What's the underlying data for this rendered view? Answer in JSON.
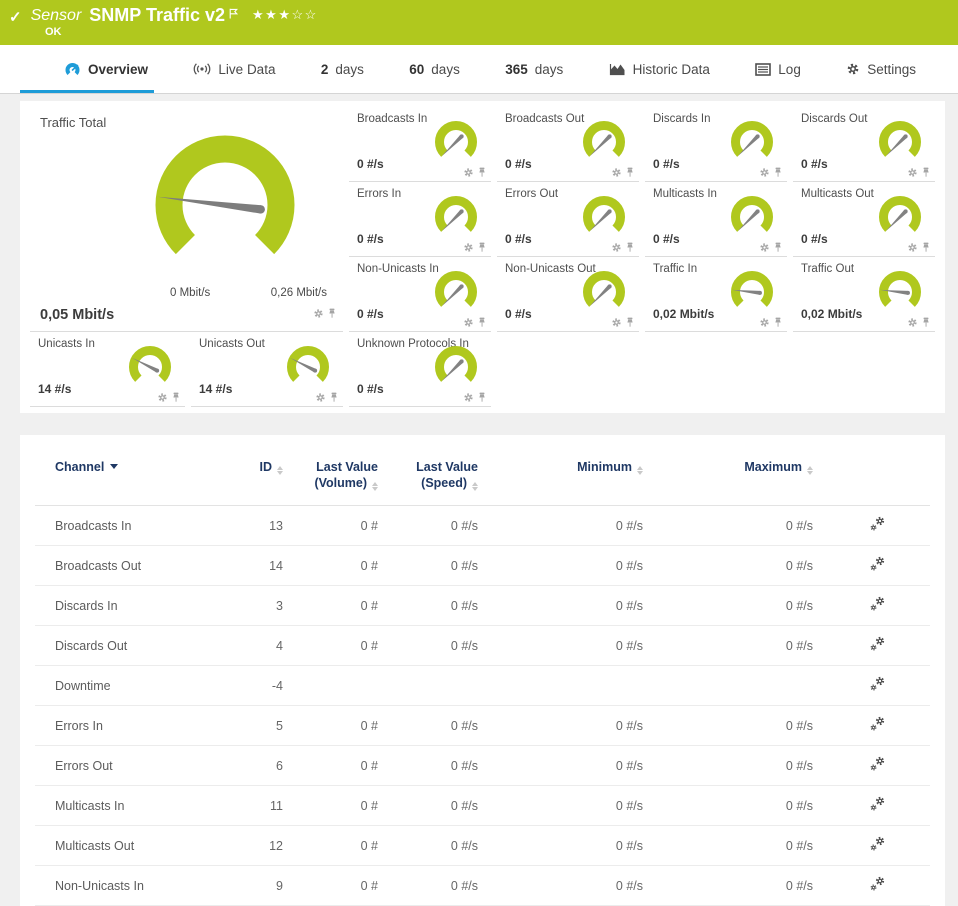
{
  "colors": {
    "accent_green": "#b0c81e",
    "tab_blue": "#1e9cd8",
    "header_navy": "#1f3864",
    "needle_gray": "#7d7d7d"
  },
  "topbar": {
    "kind": "Sensor",
    "title": "SNMP Traffic v2",
    "status": "OK",
    "stars": "★★★☆☆",
    "check": "✓"
  },
  "tabs": [
    {
      "slug": "overview",
      "label": "Overview",
      "icon": "gauge",
      "active": true
    },
    {
      "slug": "live-data",
      "label": "Live Data",
      "icon": "live"
    },
    {
      "slug": "2-days",
      "number": "2",
      "label": "days"
    },
    {
      "slug": "60-days",
      "number": "60",
      "label": "days"
    },
    {
      "slug": "365-days",
      "number": "365",
      "label": "days"
    },
    {
      "slug": "historic-data",
      "label": "Historic Data",
      "icon": "historic"
    },
    {
      "slug": "log",
      "label": "Log",
      "icon": "log"
    },
    {
      "slug": "settings",
      "label": "Settings",
      "icon": "gear"
    }
  ],
  "gauges": {
    "big": {
      "label": "Traffic Total",
      "value": "0,05 Mbit/s",
      "scale_min": "0 Mbit/s",
      "scale_max": "0,26 Mbit/s",
      "needle_deg": 187
    },
    "small": [
      {
        "label": "Broadcasts In",
        "value": "0 #/s",
        "needle_deg": 135
      },
      {
        "label": "Broadcasts Out",
        "value": "0 #/s",
        "needle_deg": 135
      },
      {
        "label": "Discards In",
        "value": "0 #/s",
        "needle_deg": 135
      },
      {
        "label": "Discards Out",
        "value": "0 #/s",
        "needle_deg": 135
      },
      {
        "label": "Errors In",
        "value": "0 #/s",
        "needle_deg": 135
      },
      {
        "label": "Errors Out",
        "value": "0 #/s",
        "needle_deg": 135
      },
      {
        "label": "Multicasts In",
        "value": "0 #/s",
        "needle_deg": 135
      },
      {
        "label": "Multicasts Out",
        "value": "0 #/s",
        "needle_deg": 135
      },
      {
        "label": "Non-Unicasts In",
        "value": "0 #/s",
        "needle_deg": 135
      },
      {
        "label": "Non-Unicasts Out",
        "value": "0 #/s",
        "needle_deg": 135
      },
      {
        "label": "Traffic In",
        "value": "0,02 Mbit/s",
        "needle_deg": 186
      },
      {
        "label": "Traffic Out",
        "value": "0,02 Mbit/s",
        "needle_deg": 186
      },
      {
        "label": "Unicasts In",
        "value": "14 #/s",
        "needle_deg": 207
      },
      {
        "label": "Unicasts Out",
        "value": "14 #/s",
        "needle_deg": 207
      },
      {
        "label": "Unknown Protocols In",
        "value": "0 #/s",
        "needle_deg": 135
      }
    ]
  },
  "table": {
    "headers": {
      "channel": "Channel",
      "id": "ID",
      "lv_line1": "Last Value",
      "volume_line2": "(Volume)",
      "speed_line2": "(Speed)",
      "minimum": "Minimum",
      "maximum": "Maximum"
    },
    "rows": [
      {
        "channel": "Broadcasts In",
        "id": "13",
        "volume": "0 #",
        "speed": "0 #/s",
        "min": "0 #/s",
        "max": "0 #/s"
      },
      {
        "channel": "Broadcasts Out",
        "id": "14",
        "volume": "0 #",
        "speed": "0 #/s",
        "min": "0 #/s",
        "max": "0 #/s"
      },
      {
        "channel": "Discards In",
        "id": "3",
        "volume": "0 #",
        "speed": "0 #/s",
        "min": "0 #/s",
        "max": "0 #/s"
      },
      {
        "channel": "Discards Out",
        "id": "4",
        "volume": "0 #",
        "speed": "0 #/s",
        "min": "0 #/s",
        "max": "0 #/s"
      },
      {
        "channel": "Downtime",
        "id": "-4",
        "volume": "",
        "speed": "",
        "min": "",
        "max": ""
      },
      {
        "channel": "Errors In",
        "id": "5",
        "volume": "0 #",
        "speed": "0 #/s",
        "min": "0 #/s",
        "max": "0 #/s"
      },
      {
        "channel": "Errors Out",
        "id": "6",
        "volume": "0 #",
        "speed": "0 #/s",
        "min": "0 #/s",
        "max": "0 #/s"
      },
      {
        "channel": "Multicasts In",
        "id": "11",
        "volume": "0 #",
        "speed": "0 #/s",
        "min": "0 #/s",
        "max": "0 #/s"
      },
      {
        "channel": "Multicasts Out",
        "id": "12",
        "volume": "0 #",
        "speed": "0 #/s",
        "min": "0 #/s",
        "max": "0 #/s"
      },
      {
        "channel": "Non-Unicasts In",
        "id": "9",
        "volume": "0 #",
        "speed": "0 #/s",
        "min": "0 #/s",
        "max": "0 #/s"
      }
    ]
  }
}
